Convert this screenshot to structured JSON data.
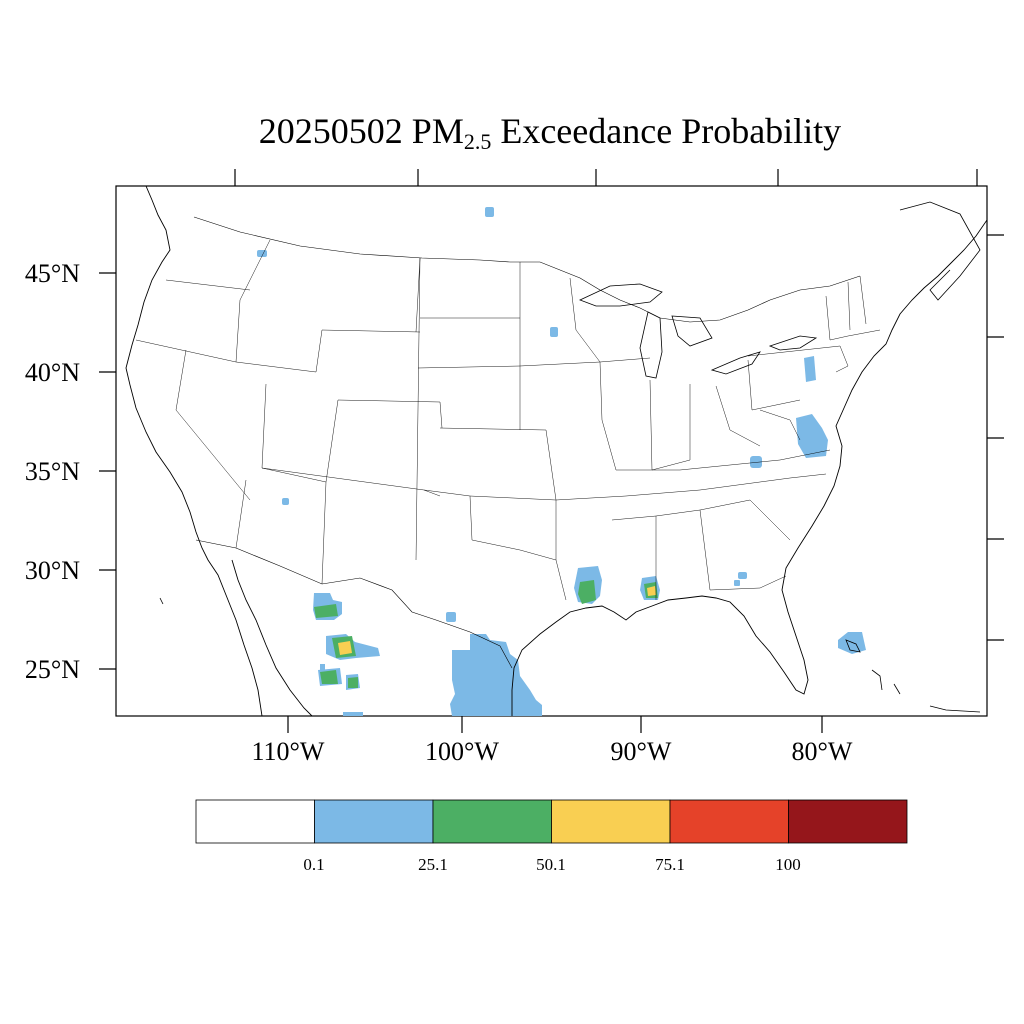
{
  "title": {
    "prefix": "20250502 PM",
    "subscript": "2.5",
    "suffix": " Exceedance Probability"
  },
  "map": {
    "lat_ticks": [
      "45°N",
      "40°N",
      "35°N",
      "30°N",
      "25°N"
    ],
    "lon_ticks": [
      "110°W",
      "100°W",
      "90°W",
      "80°W"
    ]
  },
  "colorbar": {
    "colors": [
      "#ffffff",
      "#7cb9e6",
      "#4caf64",
      "#f9cf52",
      "#e54229",
      "#95161b"
    ],
    "labels": [
      "0.1",
      "25.1",
      "50.1",
      "75.1",
      "100"
    ]
  }
}
